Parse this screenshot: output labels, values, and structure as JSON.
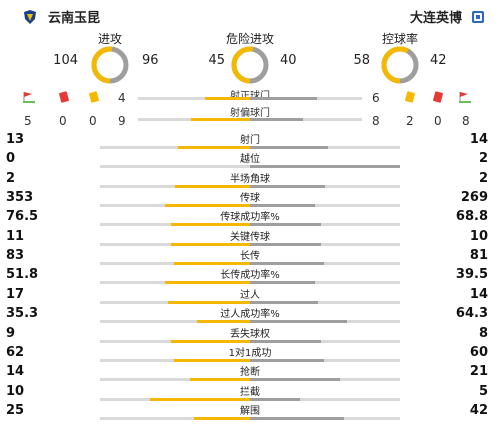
{
  "teams": {
    "home": {
      "name": "云南玉昆",
      "badge_icon": "yunnan-yukun-badge-icon",
      "color": "#f5b800"
    },
    "away": {
      "name": "大连英博",
      "badge_icon": "dalian-yingbo-badge-icon",
      "color": "#9e9e9e"
    }
  },
  "donuts": [
    {
      "label": "进攻",
      "home": "104",
      "away": "96"
    },
    {
      "label": "危险进攻",
      "home": "45",
      "away": "40"
    },
    {
      "label": "控球率",
      "home": "58",
      "away": "42"
    }
  ],
  "shots_on": {
    "label": "射正球门",
    "home": "4",
    "away": "6"
  },
  "shots_off": {
    "label": "射偏球门",
    "home": "9",
    "away": "8"
  },
  "cards_home": {
    "corners": "5",
    "red": "0",
    "yellow": "0"
  },
  "cards_away": {
    "yellow": "2",
    "red": "0",
    "corners": "8"
  },
  "icons": {
    "corner": "corner-flag-icon",
    "red": "red-card-icon",
    "yellow": "yellow-card-icon"
  },
  "stats": [
    {
      "label": "射门",
      "home": "13",
      "away": "14"
    },
    {
      "label": "越位",
      "home": "0",
      "away": "2"
    },
    {
      "label": "半场角球",
      "home": "2",
      "away": "2"
    },
    {
      "label": "传球",
      "home": "353",
      "away": "269"
    },
    {
      "label": "传球成功率%",
      "home": "76.5",
      "away": "68.8"
    },
    {
      "label": "关键传球",
      "home": "11",
      "away": "10"
    },
    {
      "label": "长传",
      "home": "83",
      "away": "81"
    },
    {
      "label": "长传成功率%",
      "home": "51.8",
      "away": "39.5"
    },
    {
      "label": "过人",
      "home": "17",
      "away": "14"
    },
    {
      "label": "过人成功率%",
      "home": "35.3",
      "away": "64.3"
    },
    {
      "label": "丢失球权",
      "home": "9",
      "away": "8"
    },
    {
      "label": "1对1成功",
      "home": "62",
      "away": "60"
    },
    {
      "label": "抢断",
      "home": "14",
      "away": "21"
    },
    {
      "label": "拦截",
      "home": "10",
      "away": "5"
    },
    {
      "label": "解围",
      "home": "25",
      "away": "42"
    }
  ]
}
